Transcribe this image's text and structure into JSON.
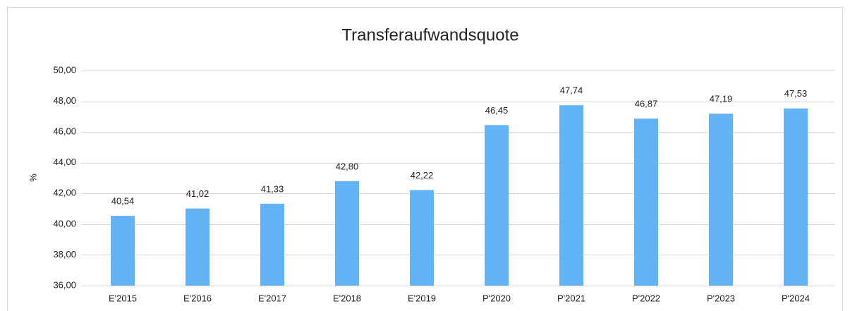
{
  "chart_data": {
    "type": "bar",
    "title": "Transferaufwandsquote",
    "y_label": "%",
    "categories": [
      "E'2015",
      "E'2016",
      "E'2017",
      "E'2018",
      "E'2019",
      "P'2020",
      "P'2021",
      "P'2022",
      "P'2023",
      "P'2024"
    ],
    "values": [
      40.54,
      41.02,
      41.33,
      42.8,
      42.22,
      46.45,
      47.74,
      46.87,
      47.19,
      47.53
    ],
    "value_labels": [
      "40,54",
      "41,02",
      "41,33",
      "42,80",
      "42,22",
      "46,45",
      "47,74",
      "46,87",
      "47,19",
      "47,53"
    ],
    "color": "#62b4f6",
    "ylim": [
      36,
      50
    ],
    "yticks": [
      {
        "value": 36,
        "label": "36,00"
      },
      {
        "value": 38,
        "label": "38,00"
      },
      {
        "value": 40,
        "label": "40,00"
      },
      {
        "value": 42,
        "label": "42,00"
      },
      {
        "value": 44,
        "label": "44,00"
      },
      {
        "value": 46,
        "label": "46,00"
      },
      {
        "value": 48,
        "label": "48,00"
      },
      {
        "value": 50,
        "label": "50,00"
      }
    ],
    "grid": true
  }
}
